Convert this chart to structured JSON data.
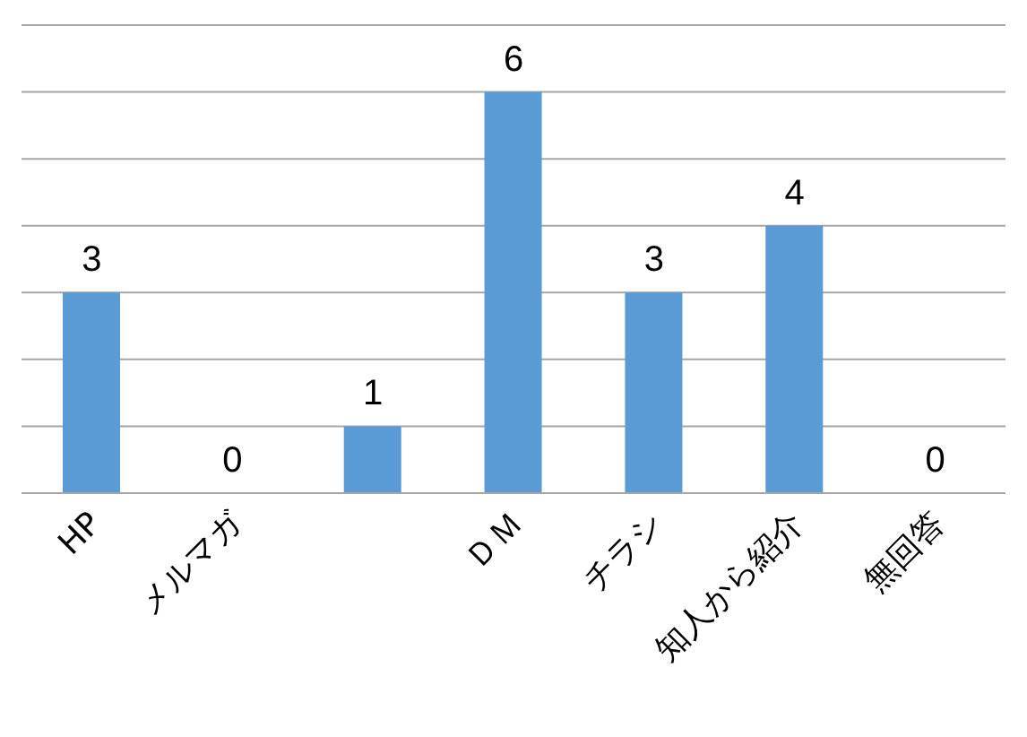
{
  "chart_data": {
    "type": "bar",
    "categories": [
      "HP",
      "メルマガ",
      null,
      "ＤＭ",
      "チラシ",
      "知人から紹介",
      "無回答"
    ],
    "values": [
      3,
      0,
      1,
      6,
      3,
      4,
      0
    ],
    "color": "#5b9bd5",
    "ylim": [
      0,
      7
    ],
    "yticks": [
      {
        "value": 0,
        "label": null
      },
      {
        "value": 1,
        "label": null
      },
      {
        "value": 2,
        "label": null
      },
      {
        "value": 3,
        "label": null
      },
      {
        "value": 4,
        "label": null
      },
      {
        "value": 5,
        "label": null
      },
      {
        "value": 6,
        "label": null
      },
      {
        "value": 7,
        "label": null
      }
    ],
    "tick_labels": "x",
    "grid": "y",
    "data_labels": true,
    "legend": false
  }
}
